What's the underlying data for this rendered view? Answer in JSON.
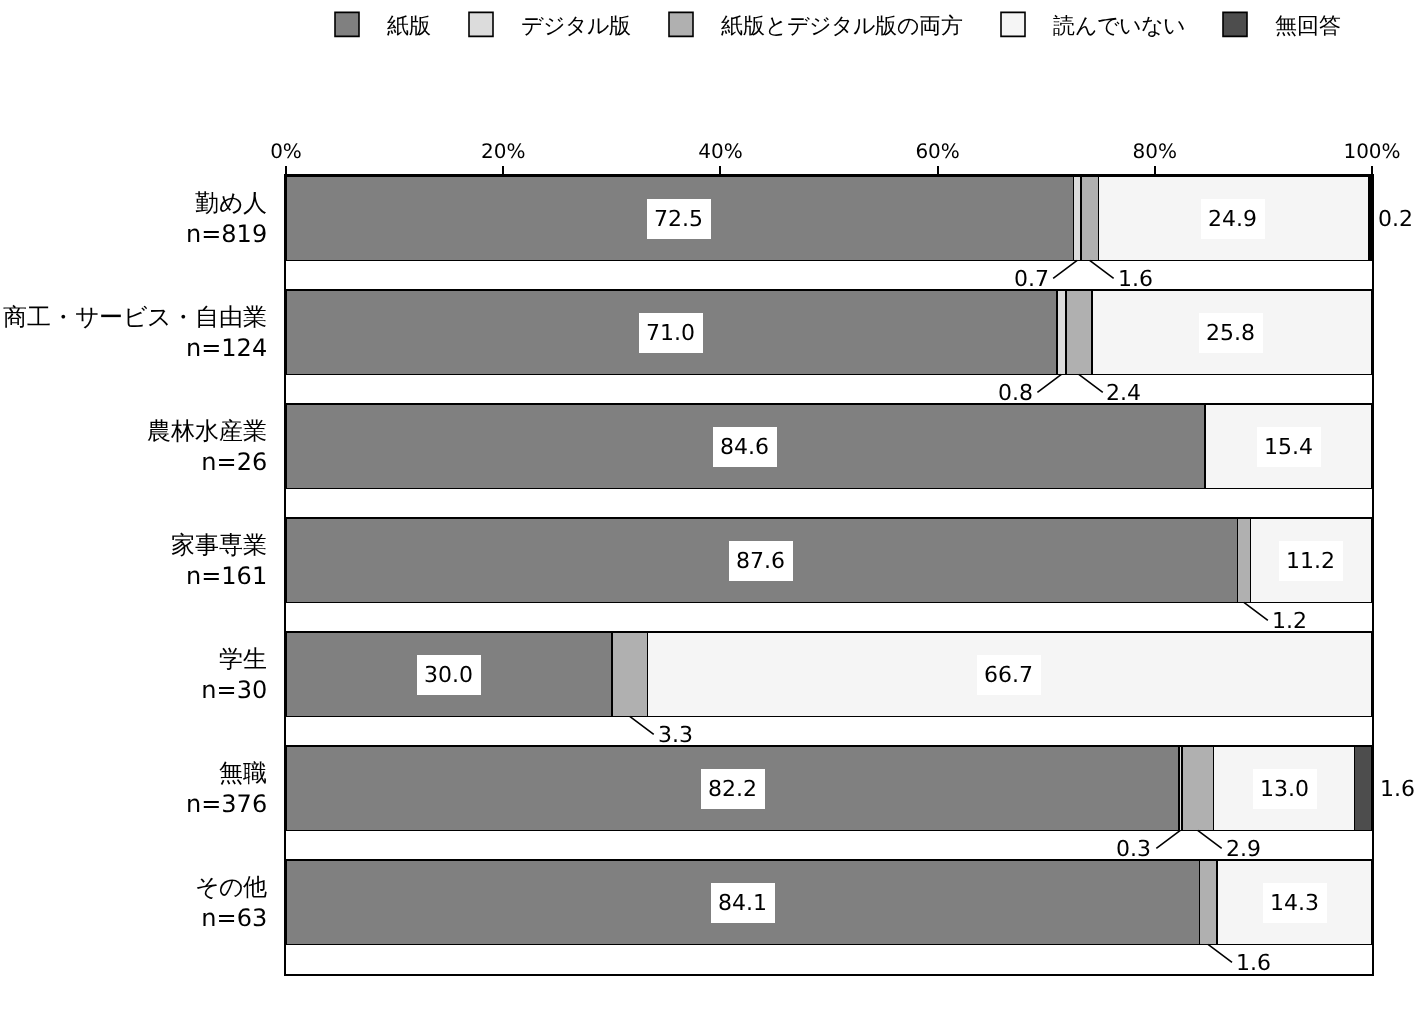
{
  "chart_data": {
    "type": "bar",
    "orientation": "horizontal",
    "stacked": true,
    "categories": [
      "勤め人\nn=819",
      "商工・サービス・自由業\nn=124",
      "農林水産業\nn=26",
      "家事専業\nn=161",
      "学生\nn=30",
      "無職\nn=376",
      "その他\nn=63"
    ],
    "series": [
      {
        "name": "紙版",
        "color": "#808080",
        "values": [
          72.5,
          71.0,
          84.6,
          87.6,
          30.0,
          82.2,
          84.1
        ],
        "value_labels": [
          "72.5",
          "71.0",
          "84.6",
          "87.6",
          "30.0",
          "82.2",
          "84.1"
        ]
      },
      {
        "name": "デジタル版",
        "color": "#dcdcdc",
        "values": [
          0.7,
          0.8,
          null,
          null,
          null,
          0.3,
          null
        ],
        "value_labels": [
          "0.7",
          "0.8",
          null,
          null,
          null,
          "0.3",
          null
        ]
      },
      {
        "name": "紙版とデジタル版の両方",
        "color": "#b0b0b0",
        "values": [
          1.6,
          2.4,
          null,
          1.2,
          3.3,
          2.9,
          1.6
        ],
        "value_labels": [
          "1.6",
          "2.4",
          null,
          "1.2",
          "3.3",
          "2.9",
          "1.6"
        ]
      },
      {
        "name": "読んでいない",
        "color": "#f5f5f5",
        "values": [
          24.9,
          25.8,
          15.4,
          11.2,
          66.7,
          13.0,
          14.3
        ],
        "value_labels": [
          "24.9",
          "25.8",
          "15.4",
          "11.2",
          "66.7",
          "13.0",
          "14.3"
        ]
      },
      {
        "name": "無回答",
        "color": "#4d4d4d",
        "values": [
          0.2,
          null,
          null,
          null,
          null,
          1.6,
          null
        ],
        "value_labels": [
          "0.2",
          null,
          null,
          null,
          null,
          "1.6",
          null
        ]
      }
    ],
    "xlim": [
      0,
      100
    ],
    "xticks": [
      {
        "value": 0,
        "label": "0%"
      },
      {
        "value": 20,
        "label": "20%"
      },
      {
        "value": 40,
        "label": "40%"
      },
      {
        "value": 60,
        "label": "60%"
      },
      {
        "value": 80,
        "label": "80%"
      },
      {
        "value": 100,
        "label": "100%"
      }
    ],
    "grid": false,
    "legend": "top"
  }
}
